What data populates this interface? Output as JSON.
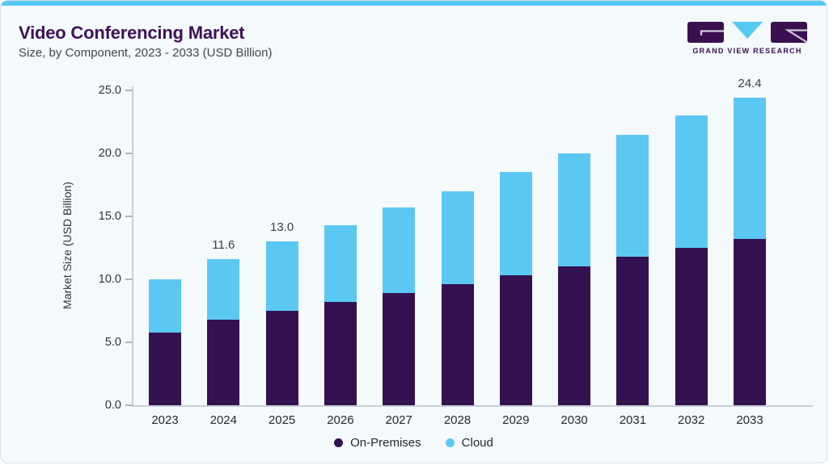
{
  "header": {
    "title": "Video Conferencing Market",
    "subtitle": "Size, by Component, 2023 - 2033 (USD Billion)"
  },
  "logo": {
    "text": "GRAND VIEW RESEARCH"
  },
  "colors": {
    "accent_strip": "#56C9F2",
    "title_purple": "#3F1257",
    "logo_purple": "#3A1050",
    "on_premises": "#341150",
    "cloud": "#5BC8F4",
    "axis_line": "#C8CED5"
  },
  "chart_data": {
    "type": "bar",
    "stacked": true,
    "title": "Video Conferencing Market Size, by Component, 2023 - 2033 (USD Billion)",
    "categories": [
      "2023",
      "2024",
      "2025",
      "2026",
      "2027",
      "2028",
      "2029",
      "2030",
      "2031",
      "2032",
      "2033"
    ],
    "series": [
      {
        "name": "On-Premises",
        "color": "#341150",
        "values": [
          5.8,
          6.8,
          7.5,
          8.2,
          8.9,
          9.6,
          10.3,
          11.0,
          11.8,
          12.5,
          13.2
        ]
      },
      {
        "name": "Cloud",
        "color": "#5BC8F4",
        "values": [
          4.2,
          4.8,
          5.5,
          6.1,
          6.8,
          7.4,
          8.2,
          9.0,
          9.7,
          10.5,
          11.2
        ]
      }
    ],
    "totals": [
      10.0,
      11.6,
      13.0,
      14.3,
      15.7,
      17.0,
      18.5,
      20.0,
      21.5,
      23.0,
      24.4
    ],
    "visible_total_labels": {
      "2024": "11.6",
      "2025": "13.0",
      "2033": "24.4"
    },
    "ylabel": "Market Size (USD Billion)",
    "yticks": [
      "0.0",
      "5.0",
      "10.0",
      "15.0",
      "20.0",
      "25.0"
    ],
    "ylim": [
      0,
      25
    ],
    "grid": false,
    "legend_position": "bottom"
  }
}
